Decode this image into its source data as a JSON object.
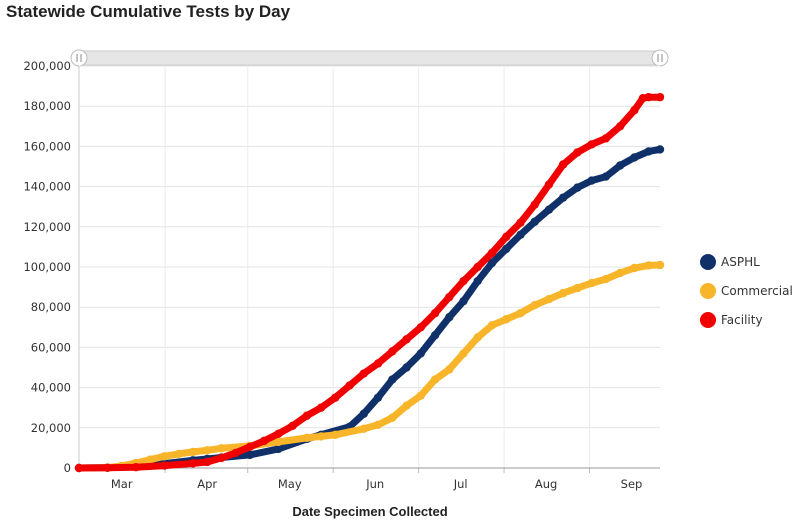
{
  "chart_data": {
    "type": "line",
    "title": "Statewide Cumulative Tests by Day",
    "xlabel": "Date Specimen Collected",
    "ylabel": "",
    "ylim": [
      0,
      200000
    ],
    "yticks": [
      0,
      20000,
      40000,
      60000,
      80000,
      100000,
      120000,
      140000,
      160000,
      180000,
      200000
    ],
    "ytick_labels": [
      "0",
      "20,000",
      "40,000",
      "60,000",
      "80,000",
      "100,000",
      "120,000",
      "140,000",
      "160,000",
      "180,000",
      "200,000"
    ],
    "xlim": [
      0,
      204
    ],
    "xticks": [
      {
        "label": "Mar",
        "day": 15
      },
      {
        "label": "Apr",
        "day": 45
      },
      {
        "label": "May",
        "day": 74
      },
      {
        "label": "Jun",
        "day": 104
      },
      {
        "label": "Jul",
        "day": 134
      },
      {
        "label": "Aug",
        "day": 164
      },
      {
        "label": "Sep",
        "day": 194
      }
    ],
    "grid": true,
    "legend_position": "right",
    "series": [
      {
        "name": "ASPHL",
        "color": "#10306a",
        "x": [
          0,
          10,
          20,
          30,
          40,
          45,
          50,
          60,
          70,
          80,
          85,
          95,
          100,
          105,
          110,
          115,
          120,
          125,
          130,
          135,
          140,
          145,
          150,
          155,
          160,
          165,
          170,
          175,
          180,
          185,
          190,
          195,
          200,
          204
        ],
        "y": [
          0,
          200,
          800,
          2200,
          3800,
          4500,
          5200,
          6500,
          9500,
          14500,
          16500,
          20500,
          27000,
          35000,
          44000,
          50000,
          57000,
          66000,
          75000,
          83000,
          93000,
          102000,
          109000,
          116000,
          122500,
          128500,
          134500,
          139500,
          143000,
          145000,
          150500,
          154500,
          157500,
          158500
        ]
      },
      {
        "name": "Commercial",
        "color": "#f8b52a",
        "x": [
          0,
          10,
          15,
          20,
          25,
          30,
          35,
          40,
          45,
          50,
          60,
          70,
          80,
          85,
          90,
          100,
          105,
          110,
          115,
          120,
          125,
          130,
          135,
          140,
          145,
          150,
          155,
          160,
          165,
          170,
          175,
          180,
          185,
          190,
          195,
          200,
          204
        ],
        "y": [
          0,
          200,
          1000,
          2500,
          4200,
          5800,
          7000,
          8000,
          8800,
          9800,
          11000,
          13000,
          15000,
          15700,
          16500,
          19500,
          21500,
          25000,
          31000,
          36000,
          44000,
          49000,
          57000,
          65000,
          71000,
          74000,
          77000,
          81000,
          84000,
          87000,
          89500,
          92000,
          94000,
          97000,
          99500,
          100800,
          101000
        ]
      },
      {
        "name": "Facility",
        "color": "#f00000",
        "x": [
          0,
          10,
          20,
          30,
          40,
          45,
          50,
          55,
          60,
          65,
          70,
          75,
          80,
          85,
          90,
          95,
          100,
          105,
          110,
          115,
          120,
          125,
          130,
          135,
          140,
          145,
          150,
          155,
          160,
          165,
          170,
          175,
          180,
          185,
          190,
          195,
          198,
          200,
          204
        ],
        "y": [
          0,
          100,
          400,
          1200,
          2300,
          3000,
          5000,
          7500,
          10500,
          13500,
          17000,
          21000,
          26000,
          30000,
          35000,
          41000,
          47000,
          52000,
          58000,
          64000,
          70000,
          77000,
          85000,
          93000,
          100000,
          107000,
          115000,
          122000,
          131000,
          141000,
          151000,
          157000,
          161000,
          164000,
          170000,
          178000,
          184000,
          184500,
          184500
        ]
      }
    ]
  }
}
